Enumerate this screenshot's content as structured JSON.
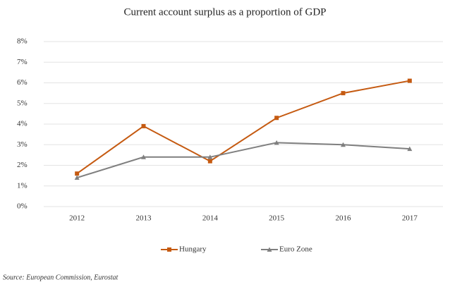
{
  "chart_data": {
    "type": "line",
    "title": "Current account surplus as a proportion of GDP",
    "source": "Source: European Commission, Eurostat",
    "categories": [
      "2012",
      "2013",
      "2014",
      "2015",
      "2016",
      "2017"
    ],
    "series": [
      {
        "name": "Hungary",
        "color": "#c55a11",
        "marker": "square",
        "values": [
          1.6,
          3.9,
          2.2,
          4.3,
          5.5,
          6.1
        ]
      },
      {
        "name": "Euro Zone",
        "color": "#7f7f7f",
        "marker": "triangle",
        "values": [
          1.4,
          2.4,
          2.4,
          3.1,
          3.0,
          2.8
        ]
      }
    ],
    "ylim": [
      0,
      8
    ],
    "yticks": [
      {
        "value": 0,
        "label": "0%"
      },
      {
        "value": 1,
        "label": "1%"
      },
      {
        "value": 2,
        "label": "2%"
      },
      {
        "value": 3,
        "label": "3%"
      },
      {
        "value": 4,
        "label": "4%"
      },
      {
        "value": 5,
        "label": "5%"
      },
      {
        "value": 6,
        "label": "6%"
      },
      {
        "value": 7,
        "label": "7%"
      },
      {
        "value": 8,
        "label": "8%"
      }
    ],
    "grid": true,
    "legend": "bottom"
  }
}
